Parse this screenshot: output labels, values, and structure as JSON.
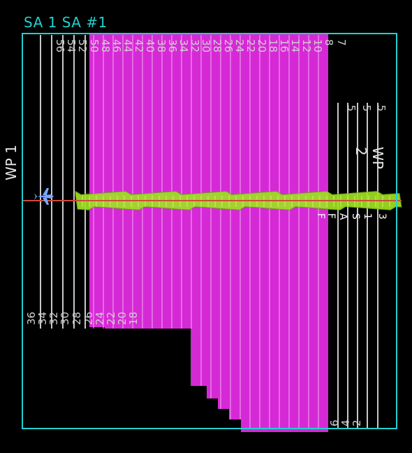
{
  "header": {
    "title": "SA 1  SA #1"
  },
  "waypoints": {
    "wp1": "WP 1",
    "wp2": "WP 2"
  },
  "track_lines": {
    "top_labels": [
      "56",
      "54",
      "52",
      "50",
      "48",
      "46",
      "44",
      "42",
      "40",
      "38",
      "36",
      "34",
      "32",
      "30",
      "28",
      "26",
      "24",
      "22",
      "20",
      "18",
      "16",
      "14",
      "12",
      "10",
      "8",
      "7"
    ],
    "right_top_labels": [
      "5",
      "5",
      "5"
    ],
    "bottom_left_labels": [
      "36",
      "34",
      "32",
      "30",
      "28",
      "26",
      "24",
      "22",
      "20",
      "18"
    ],
    "bottom_right_labels": [
      "6",
      "4",
      "2"
    ],
    "mid_right_labels": [
      "F",
      "F",
      "A",
      "S",
      "1",
      "3"
    ]
  },
  "colors": {
    "boundary": "#20d0d0",
    "coverage": "#d629d6",
    "track": "#c8c8c8",
    "path": "#d24a3a",
    "vessel": "#7aa7ff",
    "swath": "#9fe021"
  },
  "icons": {
    "vessel": "aircraft-icon"
  }
}
